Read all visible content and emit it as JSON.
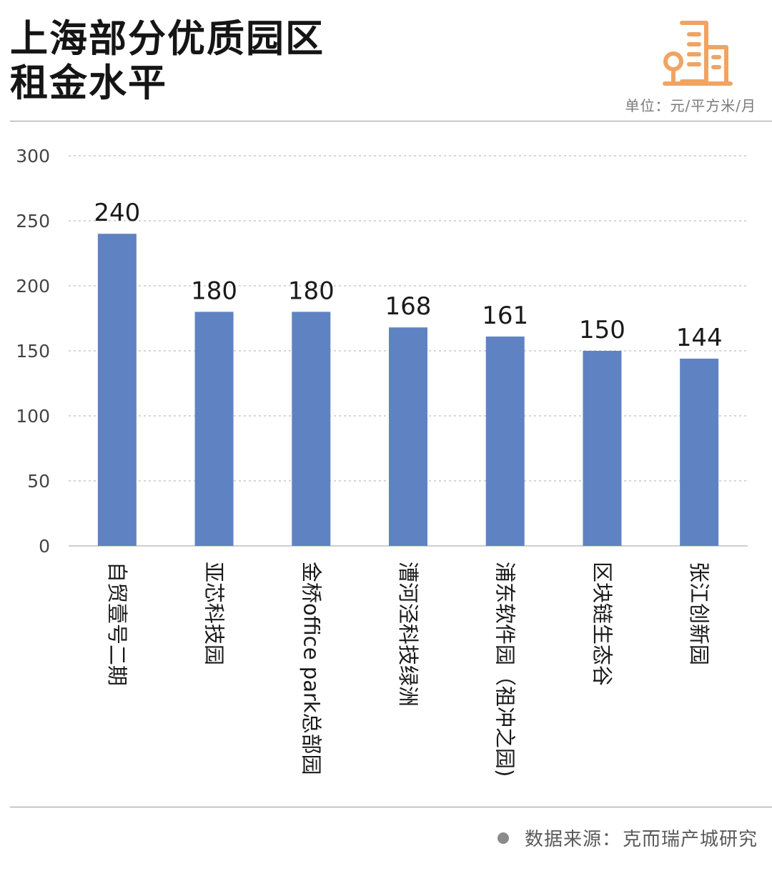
{
  "header": {
    "title_line1": "上海部分优质园区",
    "title_line2": "租金水平",
    "unit": "单位：元/平方米/月"
  },
  "footer": {
    "source_label": "数据来源：",
    "source_value": "克而瑞产城研究"
  },
  "colors": {
    "bar": "#5f83c2",
    "logo": "#f0a463",
    "grid": "#c8c8c8"
  },
  "icons": {
    "logo": "building-icon"
  },
  "chart_data": {
    "type": "bar",
    "title": "上海部分优质园区租金水平",
    "ylabel": "",
    "xlabel": "",
    "ylim": [
      0,
      300
    ],
    "yticks": [
      0,
      50,
      100,
      150,
      200,
      250,
      300
    ],
    "grid": true,
    "categories": [
      "自贸壹号二期",
      "亚芯科技园",
      "金桥office park总部园",
      "漕河泾科技绿洲",
      "浦东软件园（祖冲之园)",
      "区块链生态谷",
      "张江创新园"
    ],
    "values": [
      240,
      180,
      180,
      168,
      161,
      150,
      144
    ]
  }
}
